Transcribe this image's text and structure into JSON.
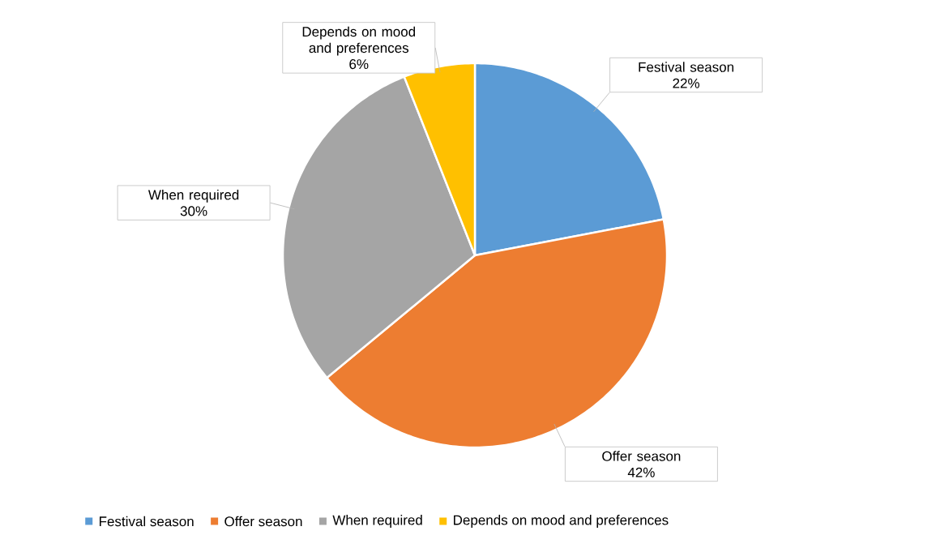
{
  "chart_data": {
    "type": "pie",
    "categories": [
      "Festival season",
      "Offer season",
      "When required",
      "Depends on mood and preferences"
    ],
    "values": [
      22,
      42,
      30,
      6
    ],
    "value_labels": [
      "22%",
      "42%",
      "30%",
      "6%"
    ],
    "colors": [
      "#5b9bd5",
      "#ed7d31",
      "#a5a5a5",
      "#ffc000"
    ],
    "legend": "bottom"
  }
}
